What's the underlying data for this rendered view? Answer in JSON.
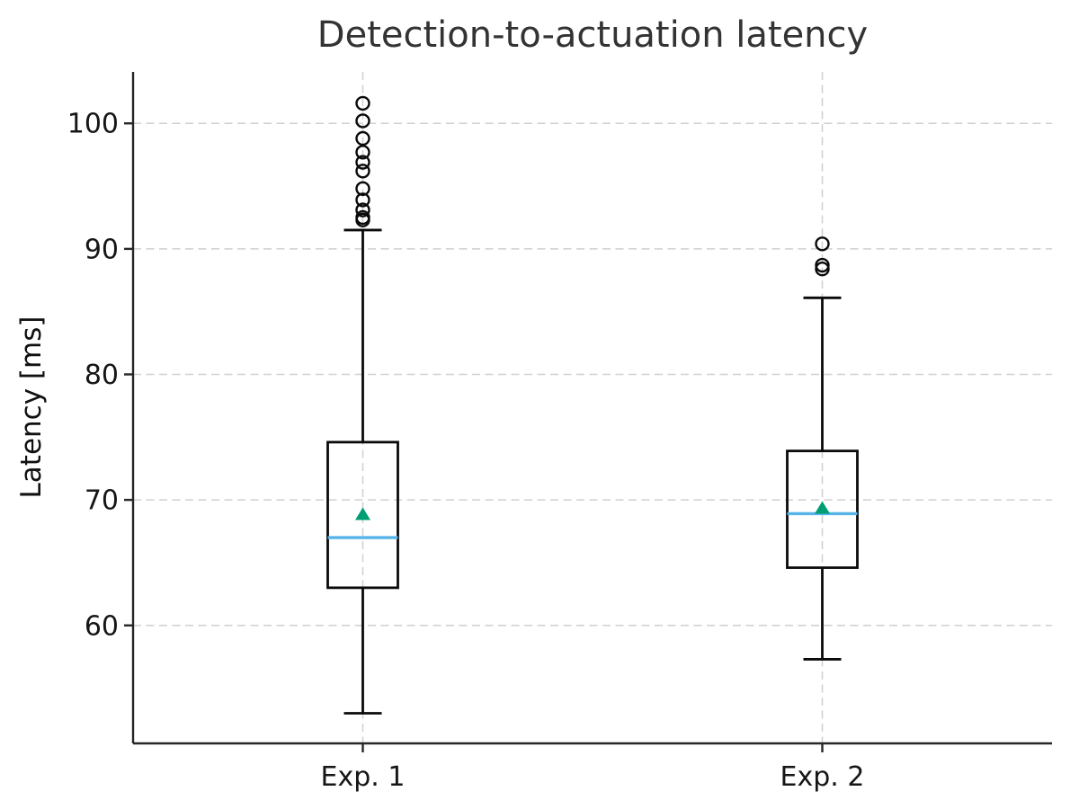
{
  "chart_data": {
    "type": "box",
    "title": "Detection-to-actuation latency",
    "xlabel": "",
    "ylabel": "Latency [ms]",
    "categories": [
      "Exp. 1",
      "Exp. 2"
    ],
    "yticks": [
      60,
      70,
      80,
      90,
      100
    ],
    "ylim": [
      50.6,
      104.1
    ],
    "grid": true,
    "legend": "none",
    "series": [
      {
        "name": "Exp. 1",
        "whisker_low": 53.0,
        "q1": 63.0,
        "median": 67.0,
        "q3": 74.6,
        "whisker_high": 91.5,
        "mean": 68.9,
        "outliers": [
          92.3,
          92.5,
          93.1,
          93.9,
          94.8,
          96.2,
          96.9,
          97.7,
          98.8,
          100.2,
          101.6
        ]
      },
      {
        "name": "Exp. 2",
        "whisker_low": 57.3,
        "q1": 64.6,
        "median": 68.9,
        "q3": 73.9,
        "whisker_high": 86.1,
        "mean": 69.4,
        "outliers": [
          88.4,
          88.7,
          90.4
        ]
      }
    ],
    "colors": {
      "median_line": "#56b4e9",
      "mean_marker": "#009e73",
      "box_edge": "#0a0a0a",
      "grid_line": "#cfcfcf",
      "axis": "#262626",
      "title_text": "#333333",
      "background": "#ffffff"
    }
  }
}
